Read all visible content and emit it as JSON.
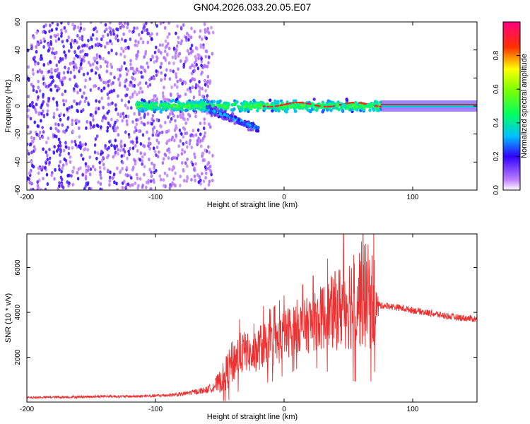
{
  "title": "GN04.2026.033.20.05.E07",
  "chart_data": [
    {
      "type": "heatmap",
      "xlabel": "Height of straight line (km)",
      "ylabel": "Frequency (Hz)",
      "xlim": [
        -200,
        150
      ],
      "ylim": [
        -60,
        60
      ],
      "xticks": [
        -200,
        -100,
        0,
        100
      ],
      "yticks": [
        -60,
        -40,
        -20,
        0,
        20,
        40,
        60
      ],
      "colorbar": {
        "label": "Normalized spectral amplitude",
        "range": [
          0,
          1
        ],
        "ticks": [
          "0.0",
          "0.2",
          "0.4",
          "0.6",
          "0.8"
        ],
        "tick_values": [
          0,
          0.2,
          0.4,
          0.6,
          0.8
        ]
      },
      "regions": [
        {
          "name": "noise-scatter",
          "x_range": [
            -200,
            -55
          ],
          "y_range": [
            -60,
            60
          ],
          "amplitude": 0.08
        },
        {
          "name": "signal-band",
          "x_range": [
            -115,
            75
          ],
          "center_freq": 0,
          "spread_hz": 6,
          "amplitude": 0.5
        },
        {
          "name": "secondary-band",
          "x_range": [
            -60,
            -20
          ],
          "center_freq": -12,
          "spread_hz": 5,
          "amplitude": 0.3
        },
        {
          "name": "peak-line",
          "x_range": [
            -20,
            150
          ],
          "center_freq": 1,
          "amplitude": 0.95
        }
      ]
    },
    {
      "type": "line",
      "xlabel": "Height of straight line (km)",
      "ylabel": "SNR (10 * v/v)",
      "xlim": [
        -200,
        150
      ],
      "ylim": [
        0,
        7500
      ],
      "xticks": [
        -200,
        -100,
        0,
        100
      ],
      "yticks": [
        2000,
        4000,
        6000
      ],
      "color": "#ee3030",
      "series": [
        {
          "name": "SNR",
          "x": [
            -200,
            -180,
            -160,
            -140,
            -120,
            -100,
            -80,
            -70,
            -60,
            -55,
            -50,
            -45,
            -40,
            -35,
            -30,
            -25,
            -20,
            -15,
            -10,
            -5,
            0,
            5,
            10,
            15,
            20,
            25,
            30,
            35,
            40,
            45,
            50,
            55,
            60,
            65,
            70,
            72,
            75,
            80,
            90,
            100,
            110,
            120,
            130,
            140,
            150
          ],
          "y": [
            200,
            220,
            230,
            260,
            250,
            280,
            350,
            450,
            550,
            700,
            900,
            1300,
            1800,
            2100,
            2300,
            2000,
            2400,
            2600,
            2500,
            2700,
            3000,
            3200,
            3400,
            3300,
            3500,
            3600,
            3800,
            3900,
            4100,
            4300,
            4500,
            4600,
            4800,
            4700,
            4500,
            4200,
            4300,
            4300,
            4200,
            4100,
            4000,
            3900,
            3800,
            3750,
            3700
          ],
          "spread": [
            50,
            50,
            60,
            60,
            60,
            70,
            90,
            120,
            150,
            250,
            500,
            800,
            1000,
            1000,
            900,
            800,
            1000,
            1100,
            1000,
            1100,
            1100,
            1200,
            1200,
            1200,
            1300,
            1300,
            1500,
            1600,
            1800,
            2000,
            2200,
            2300,
            2400,
            2400,
            2200,
            800,
            150,
            150,
            150,
            150,
            150,
            150,
            150,
            150,
            150
          ]
        }
      ]
    }
  ]
}
